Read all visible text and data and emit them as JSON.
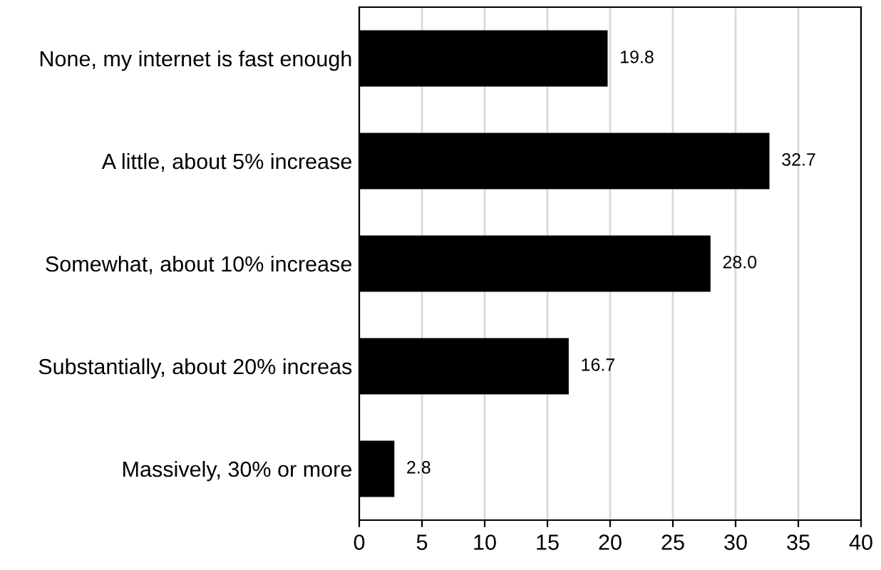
{
  "chart_data": {
    "type": "bar",
    "orientation": "horizontal",
    "categories": [
      "None, my internet is fast enough",
      "A little, about 5% increase",
      "Somewhat, about 10% increase",
      "Substantially, about 20% increas",
      "Massively, 30% or more"
    ],
    "values": [
      19.8,
      32.7,
      28.0,
      16.7,
      2.8
    ],
    "value_labels": [
      "19.8",
      "32.7",
      "28.0",
      "16.7",
      "2.8"
    ],
    "color": "#000000",
    "xlim": [
      0,
      40
    ],
    "xticks": [
      0,
      5,
      10,
      15,
      20,
      25,
      30,
      35,
      40
    ],
    "grid": "x"
  }
}
